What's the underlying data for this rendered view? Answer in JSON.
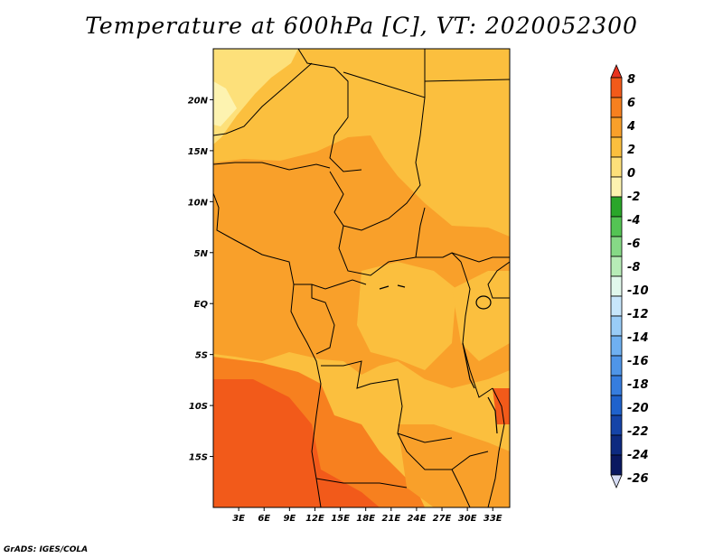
{
  "title": "Temperature at 600hPa [C], VT: 2020052300",
  "credit": "GrADS: IGES/COLA",
  "map": {
    "lon_range": [
      0,
      35
    ],
    "lat_range": [
      -20,
      25
    ],
    "lat_ticks": [
      {
        "lat": 20,
        "label": "20N"
      },
      {
        "lat": 15,
        "label": "15N"
      },
      {
        "lat": 10,
        "label": "10N"
      },
      {
        "lat": 5,
        "label": "5N"
      },
      {
        "lat": 0,
        "label": "EQ"
      },
      {
        "lat": -5,
        "label": "5S"
      },
      {
        "lat": -10,
        "label": "10S"
      },
      {
        "lat": -15,
        "label": "15S"
      }
    ],
    "lon_ticks": [
      {
        "lon": 3,
        "label": "3E"
      },
      {
        "lon": 6,
        "label": "6E"
      },
      {
        "lon": 9,
        "label": "9E"
      },
      {
        "lon": 12,
        "label": "12E"
      },
      {
        "lon": 15,
        "label": "15E"
      },
      {
        "lon": 18,
        "label": "18E"
      },
      {
        "lon": 21,
        "label": "21E"
      },
      {
        "lon": 24,
        "label": "24E"
      },
      {
        "lon": 27,
        "label": "27E"
      },
      {
        "lon": 30,
        "label": "30E"
      },
      {
        "lon": 33,
        "label": "33E"
      }
    ]
  },
  "colorbar": {
    "labels": [
      "8",
      "6",
      "4",
      "2",
      "0",
      "-2",
      "-4",
      "-6",
      "-8",
      "-10",
      "-12",
      "-14",
      "-16",
      "-18",
      "-20",
      "-22",
      "-24",
      "-26"
    ],
    "colors": [
      "#e8321e",
      "#f25a1a",
      "#f7801f",
      "#f9a02a",
      "#fbbf3e",
      "#fde07a",
      "#fdf3b0",
      "#2aa62a",
      "#54c454",
      "#86d986",
      "#b7ecb7",
      "#e1f8ec",
      "#c7e6fb",
      "#99ccf7",
      "#6fb0f1",
      "#4f95e8",
      "#367ddf",
      "#1f62cc",
      "#1544a8",
      "#0d2a80",
      "#0a1860",
      "#d6dcf4"
    ]
  },
  "regions": [
    {
      "name": "north-sahara-cool",
      "color": "#fde07a"
    },
    {
      "name": "general-warm",
      "color": "#fbbf3e"
    },
    {
      "name": "central-band",
      "color": "#f9a02a"
    },
    {
      "name": "southwest-hot",
      "color": "#f7801f"
    },
    {
      "name": "southwest-hottest",
      "color": "#f25a1a"
    }
  ]
}
